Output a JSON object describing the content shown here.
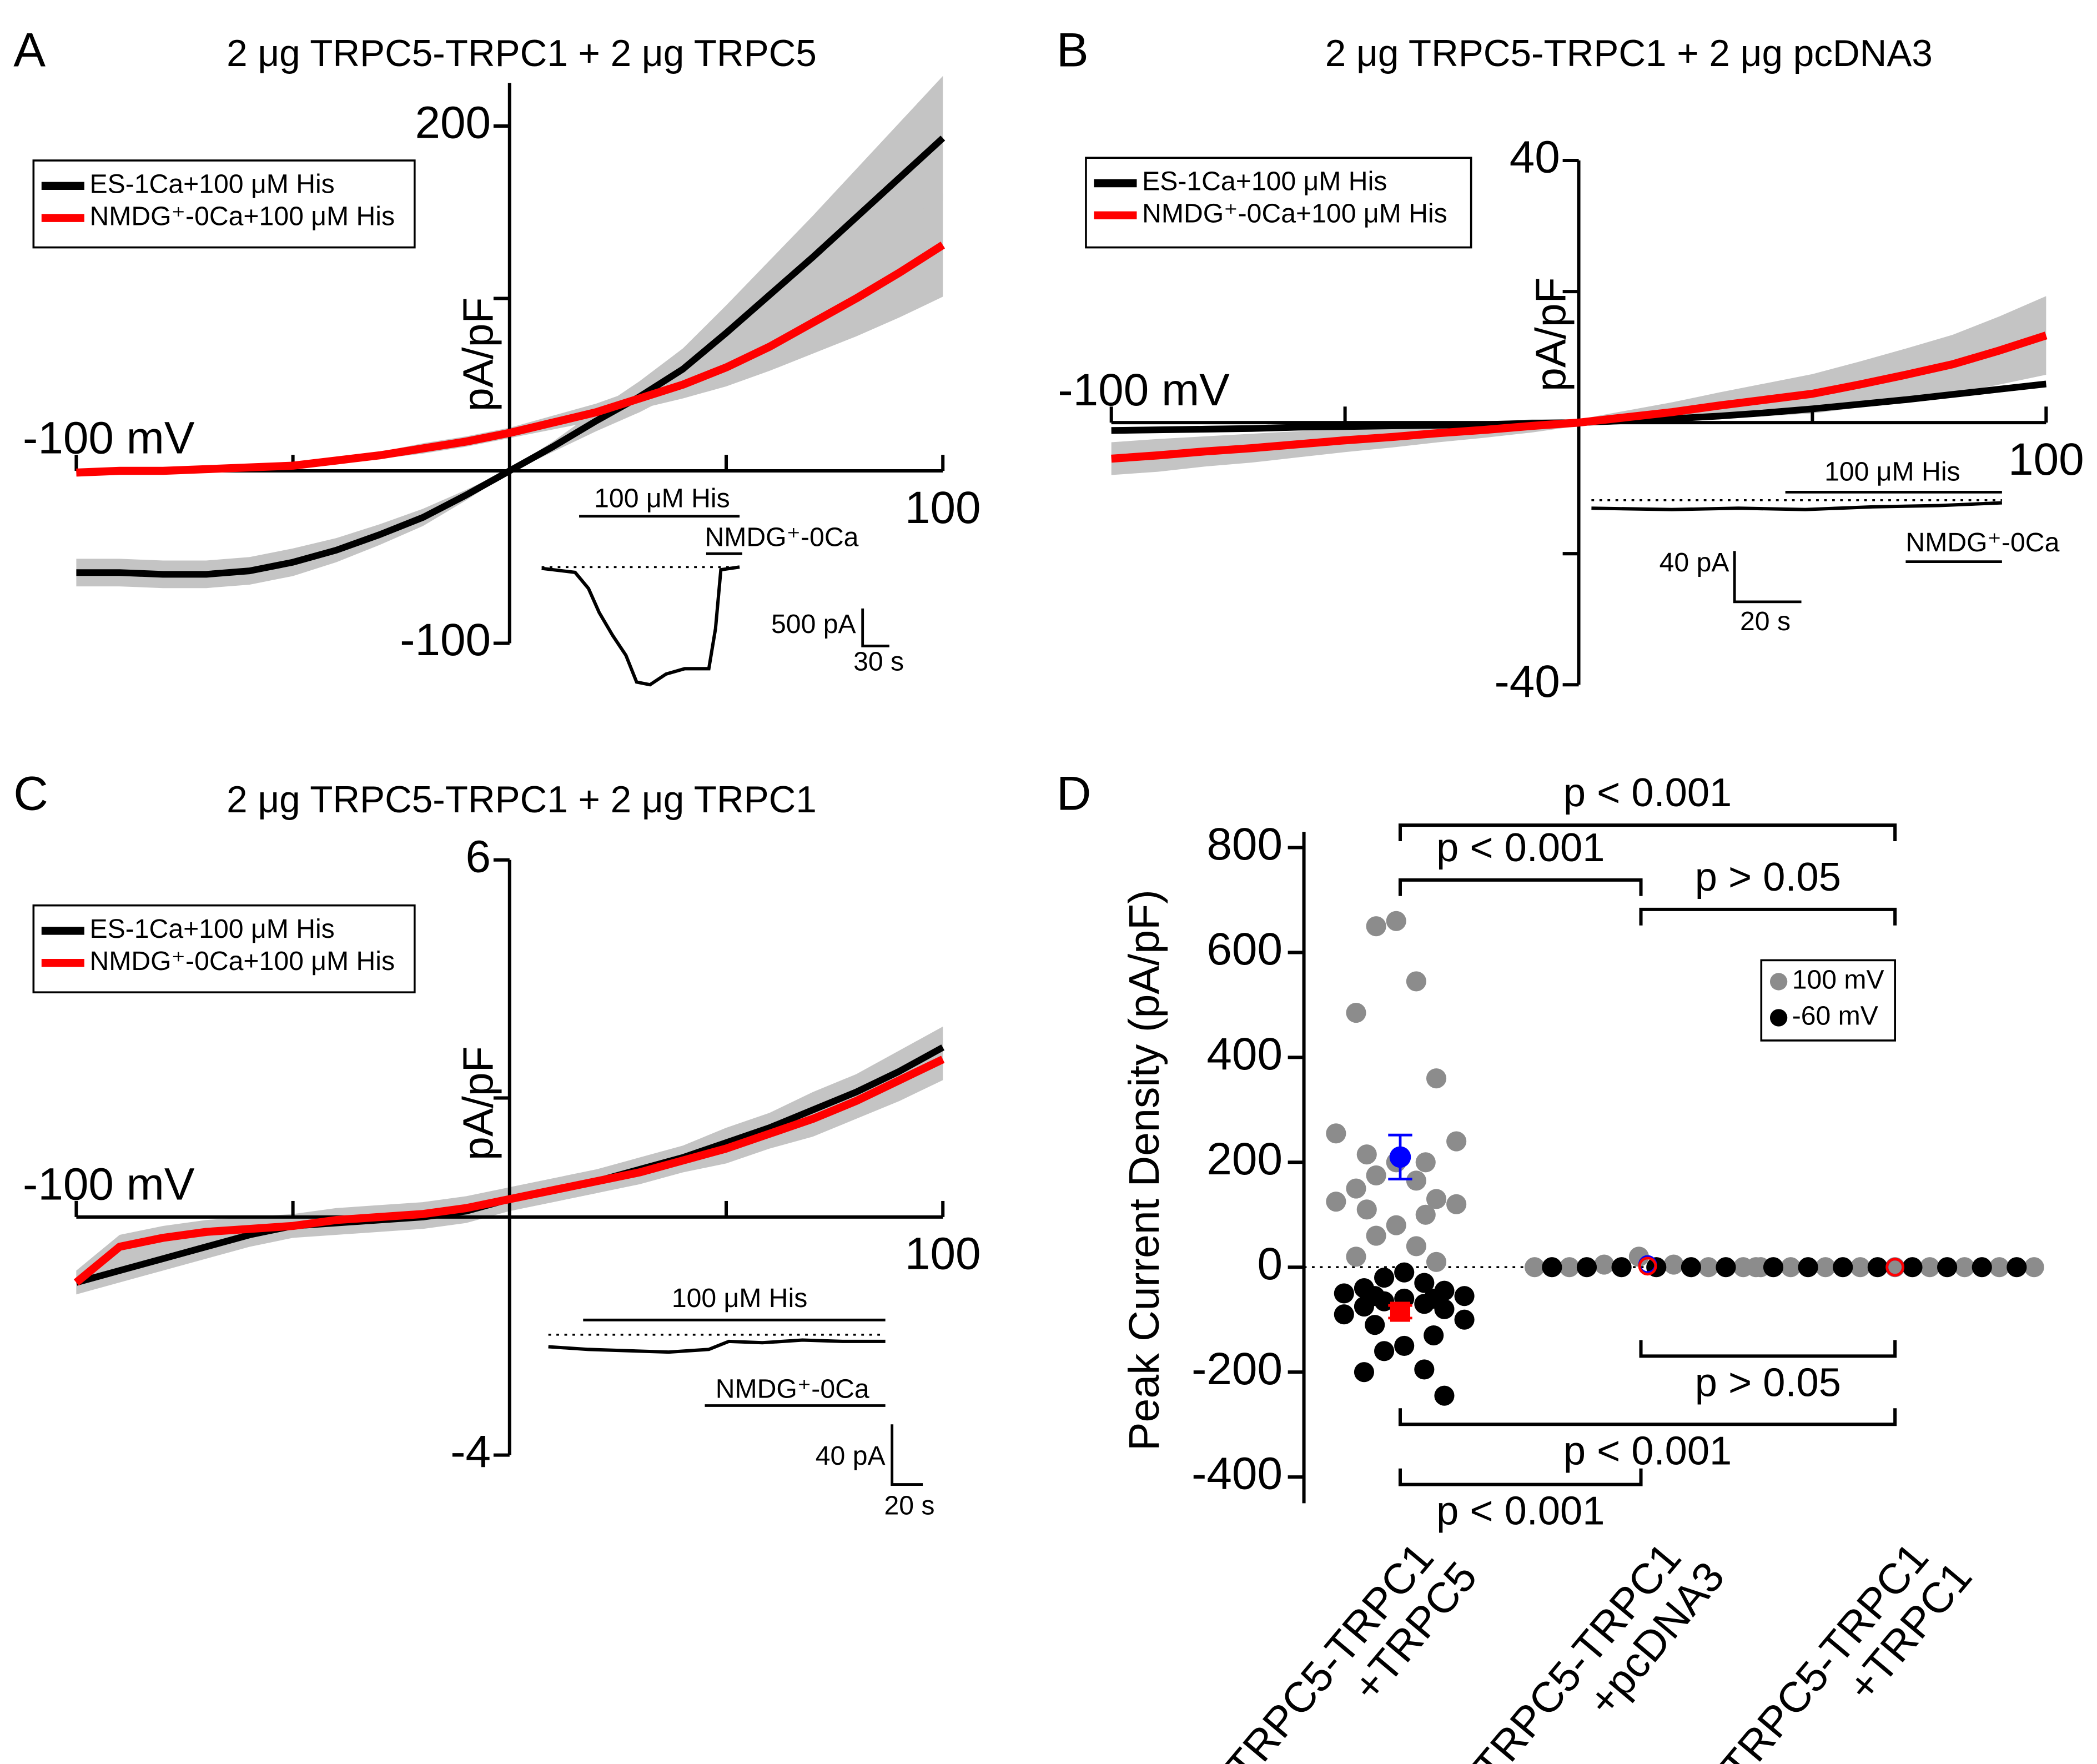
{
  "chart_data": [
    {
      "panel": "A",
      "type": "line",
      "title": "2 μg TRPC5-TRPC1 + 2 μg TRPC5",
      "ylabel": "pA/pF",
      "xlim": [
        -100,
        100
      ],
      "xticks": [
        {
          "value": -100,
          "label": "-100 mV"
        },
        100
      ],
      "minor_xticks": [
        -50,
        50
      ],
      "ylim": [
        -100,
        225
      ],
      "yticks": [
        -100,
        200
      ],
      "minor_yticks": [
        100
      ],
      "x": [
        -100,
        -90,
        -80,
        -70,
        -60,
        -50,
        -40,
        -30,
        -20,
        -10,
        0,
        10,
        20,
        30,
        40,
        50,
        60,
        70,
        80,
        90,
        100
      ],
      "series": [
        {
          "name": "ES-1Ca+100 μM His",
          "color": "#000000",
          "values": [
            -59,
            -59,
            -60,
            -60,
            -58,
            -53,
            -46,
            -37,
            -27,
            -14,
            0,
            14,
            29,
            43,
            59,
            80,
            102,
            124,
            147,
            170,
            193
          ],
          "errors": [
            8,
            8,
            8,
            8,
            8,
            8,
            7,
            6,
            5,
            3,
            1,
            3,
            6,
            9,
            12,
            16,
            20,
            24,
            28,
            32,
            36
          ]
        },
        {
          "name": "NMDG⁺-0Ca+100 μM His",
          "color": "#ff0000",
          "values": [
            -1,
            0,
            0,
            1,
            2,
            3,
            6,
            9,
            13,
            17,
            22,
            28,
            34,
            42,
            50,
            60,
            72,
            86,
            100,
            115,
            131
          ],
          "errors": [
            2,
            2,
            2,
            2,
            2,
            2,
            2,
            2,
            3,
            3,
            3,
            4,
            5,
            6,
            8,
            11,
            14,
            18,
            22,
            26,
            30
          ]
        }
      ],
      "legend": "upper left",
      "inset": {
        "labels": [
          "100 μM His",
          "NMDG⁺-0Ca"
        ],
        "scale_y": "500 pA",
        "scale_x": "30 s"
      }
    },
    {
      "panel": "B",
      "type": "line",
      "title": "2 μg TRPC5-TRPC1 + 2 μg pcDNA3",
      "ylabel": "pA/pF",
      "xlim": [
        -100,
        100
      ],
      "xticks": [
        {
          "value": -100,
          "label": "-100 mV"
        },
        100
      ],
      "minor_xticks": [
        -50,
        50
      ],
      "ylim": [
        -40,
        40
      ],
      "yticks": [
        -40,
        40
      ],
      "minor_yticks": [
        -20,
        20
      ],
      "x": [
        -100,
        -90,
        -80,
        -70,
        -60,
        -50,
        -40,
        -30,
        -20,
        -10,
        0,
        10,
        20,
        30,
        40,
        50,
        60,
        70,
        80,
        90,
        100
      ],
      "series": [
        {
          "name": "ES-1Ca+100 μM His",
          "color": "#000000",
          "values": [
            -1.2,
            -1.1,
            -1,
            -0.9,
            -0.7,
            -0.6,
            -0.5,
            -0.4,
            -0.3,
            -0.1,
            0,
            0.3,
            0.6,
            1,
            1.5,
            2.1,
            2.8,
            3.5,
            4.3,
            5.1,
            5.9
          ],
          "errors": [
            0.5,
            0.5,
            0.5,
            0.5,
            0.5,
            0.5,
            0.5,
            0.5,
            0.5,
            0.5,
            0.5,
            0.5,
            0.5,
            0.5,
            0.5,
            0.5,
            0.5,
            0.5,
            0.5,
            0.5,
            0.5
          ]
        },
        {
          "name": "NMDG⁺-0Ca+100 μM His",
          "color": "#ff0000",
          "values": [
            -5.5,
            -5,
            -4.4,
            -3.9,
            -3.3,
            -2.7,
            -2.2,
            -1.6,
            -1.1,
            -0.5,
            0,
            0.8,
            1.6,
            2.6,
            3.5,
            4.4,
            5.8,
            7.3,
            8.9,
            11,
            13.3
          ],
          "errors": [
            2.5,
            2.5,
            2.3,
            2.2,
            2,
            1.8,
            1.6,
            1.4,
            1.2,
            1,
            0.5,
            1,
            1.5,
            2,
            2.5,
            3,
            3.5,
            4,
            4.5,
            5.2,
            6
          ]
        }
      ],
      "legend": "upper left",
      "inset": {
        "labels": [
          "100 μM His",
          "NMDG⁺-0Ca"
        ],
        "scale_y": "40 pA",
        "scale_x": "20 s"
      }
    },
    {
      "panel": "C",
      "type": "line",
      "title": "2 μg TRPC5-TRPC1 + 2 μg TRPC1",
      "ylabel": "pA/pF",
      "xlim": [
        -100,
        100
      ],
      "xticks": [
        {
          "value": -100,
          "label": "-100 mV"
        },
        100
      ],
      "minor_xticks": [
        -50,
        50
      ],
      "ylim": [
        -4,
        6
      ],
      "yticks": [
        -4,
        6
      ],
      "minor_yticks": [
        2
      ],
      "x": [
        -100,
        -90,
        -80,
        -70,
        -60,
        -50,
        -40,
        -30,
        -20,
        -10,
        0,
        10,
        20,
        30,
        40,
        50,
        60,
        70,
        80,
        90,
        100
      ],
      "series": [
        {
          "name": "ES-1Ca+100 μM His",
          "color": "#000000",
          "values": [
            -1.1,
            -0.9,
            -0.7,
            -0.5,
            -0.3,
            -0.15,
            -0.1,
            -0.05,
            0,
            0.1,
            0.3,
            0.45,
            0.6,
            0.8,
            1.0,
            1.25,
            1.5,
            1.8,
            2.1,
            2.45,
            2.85
          ],
          "errors": [
            0.2,
            0.2,
            0.2,
            0.2,
            0.2,
            0.2,
            0.2,
            0.2,
            0.2,
            0.2,
            0.2,
            0.2,
            0.2,
            0.2,
            0.2,
            0.25,
            0.25,
            0.3,
            0.3,
            0.35,
            0.35
          ]
        },
        {
          "name": "NMDG⁺-0Ca+100 μM His",
          "color": "#ff0000",
          "values": [
            -1.1,
            -0.5,
            -0.35,
            -0.25,
            -0.2,
            -0.15,
            -0.05,
            0,
            0.05,
            0.15,
            0.3,
            0.45,
            0.6,
            0.75,
            0.95,
            1.15,
            1.4,
            1.65,
            1.95,
            2.3,
            2.65
          ],
          "errors": [
            0.2,
            0.2,
            0.2,
            0.2,
            0.2,
            0.2,
            0.2,
            0.2,
            0.2,
            0.2,
            0.2,
            0.2,
            0.2,
            0.2,
            0.2,
            0.25,
            0.25,
            0.3,
            0.3,
            0.35,
            0.35
          ]
        }
      ],
      "legend": "upper left",
      "inset": {
        "labels": [
          "100 μM His",
          "NMDG⁺-0Ca"
        ],
        "scale_y": "40 pA",
        "scale_x": "20 s"
      }
    },
    {
      "panel": "D",
      "type": "strip",
      "ylabel": "Peak Current Density (pA/pF)",
      "ylim": [
        -450,
        830
      ],
      "yticks": [
        -400,
        -200,
        0,
        200,
        400,
        600,
        800
      ],
      "categories": [
        [
          "TRPC5-TRPC1",
          "+TRPC5"
        ],
        [
          "TRPC5-TRPC1",
          "+pcDNA3"
        ],
        [
          "TRPC5-TRPC1",
          "+TRPC1"
        ]
      ],
      "series": [
        {
          "name": "100 mV",
          "color": "#8c8c8c",
          "values": [
            [
              660,
              650,
              545,
              485,
              360,
              255,
              240,
              215,
              200,
              200,
              175,
              165,
              150,
              130,
              125,
              120,
              110,
              100,
              80,
              60,
              40,
              20,
              10
            ],
            [
              0,
              0,
              5,
              20,
              5,
              0,
              0,
              0
            ],
            [
              0,
              0,
              0,
              0,
              0,
              0,
              0,
              0,
              0
            ]
          ]
        },
        {
          "name": "-60 mV",
          "color": "#000000",
          "values": [
            [
              -10,
              -20,
              -30,
              -40,
              -45,
              -50,
              -55,
              -55,
              -60,
              -60,
              -65,
              -70,
              -75,
              -80,
              -90,
              -100,
              -110,
              -130,
              -150,
              -160,
              -195,
              -200,
              -245
            ],
            [
              0,
              0,
              0,
              0,
              0,
              0
            ],
            [
              0,
              0,
              0,
              0,
              0,
              0,
              0,
              0
            ]
          ]
        }
      ],
      "means": [
        {
          "color": "#0000ff",
          "marker": "circle",
          "values": [
            210,
            5,
            0
          ],
          "errors": [
            42,
            3,
            1
          ]
        },
        {
          "color": "#ff0000",
          "marker": "square",
          "values": [
            -85,
            2,
            0
          ],
          "errors": [
            12,
            2,
            1
          ]
        }
      ],
      "filled": [
        true,
        false,
        false
      ],
      "annotations": [
        "p < 0.001",
        "p < 0.001",
        "p > 0.05",
        "p > 0.05",
        "p < 0.001",
        "p < 0.001"
      ],
      "legend": "upper right"
    }
  ]
}
